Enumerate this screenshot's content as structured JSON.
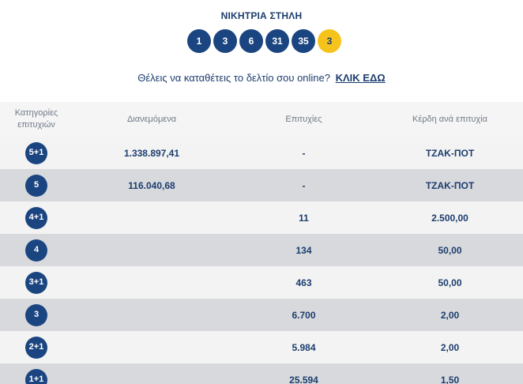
{
  "winning_line": {
    "title": "ΝΙΚΗΤΡΙΑ ΣΤΗΛΗ",
    "numbers": [
      "1",
      "3",
      "6",
      "31",
      "35"
    ],
    "bonus": "3"
  },
  "online": {
    "text": "Θέλεις να καταθέτεις το δελτίο σου online?",
    "link": "ΚΛΙΚ ΕΔΩ"
  },
  "table": {
    "headers": {
      "categories": "Κατηγορίες επιτυχιών",
      "distributed": "Διανεμόμενα",
      "winners": "Επιτυχίες",
      "prize": "Κέρδη ανά επιτυχία"
    },
    "rows": [
      {
        "category": "5+1",
        "distributed": "1.338.897,41",
        "winners": "-",
        "prize": "ΤΖΑΚ-ΠΟΤ"
      },
      {
        "category": "5",
        "distributed": "116.040,68",
        "winners": "-",
        "prize": "ΤΖΑΚ-ΠΟΤ"
      },
      {
        "category": "4+1",
        "distributed": "",
        "winners": "11",
        "prize": "2.500,00"
      },
      {
        "category": "4",
        "distributed": "",
        "winners": "134",
        "prize": "50,00"
      },
      {
        "category": "3+1",
        "distributed": "",
        "winners": "463",
        "prize": "50,00"
      },
      {
        "category": "3",
        "distributed": "",
        "winners": "6.700",
        "prize": "2,00"
      },
      {
        "category": "2+1",
        "distributed": "",
        "winners": "5.984",
        "prize": "2,00"
      },
      {
        "category": "1+1",
        "distributed": "",
        "winners": "25.594",
        "prize": "1,50"
      }
    ]
  }
}
